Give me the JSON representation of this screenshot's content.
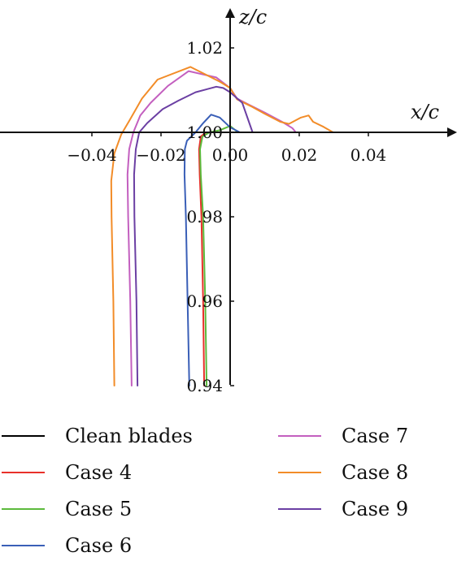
{
  "chart_data": {
    "type": "line",
    "xlabel": "x/c",
    "ylabel": "z/c",
    "xlim": [
      -0.052,
      0.05
    ],
    "ylim": [
      0.94,
      1.03
    ],
    "x_ticks": [
      "−0.04",
      "−0.02",
      "0.00",
      "0.02",
      "0.04"
    ],
    "x_tick_values": [
      -0.04,
      -0.02,
      0.0,
      0.02,
      0.04
    ],
    "y_ticks": [
      "1.02",
      "1.00",
      "0.98",
      "0.96",
      "0.94"
    ],
    "y_tick_values": [
      1.02,
      1.0,
      0.98,
      0.96,
      0.94
    ],
    "grid": false,
    "legend_position": "bottom",
    "series": [
      {
        "name": "Clean blades",
        "color": "#000000",
        "points": []
      },
      {
        "name": "Case 4",
        "color": "#e8302a",
        "points": [
          [
            -0.0075,
            0.94
          ],
          [
            -0.0078,
            0.96
          ],
          [
            -0.0083,
            0.98
          ],
          [
            -0.0088,
            0.99
          ],
          [
            -0.009,
            0.996
          ],
          [
            -0.0085,
            0.999
          ],
          [
            -0.007,
            1.0
          ]
        ]
      },
      {
        "name": "Case 5",
        "color": "#5cba3c",
        "points": [
          [
            -0.0068,
            0.94
          ],
          [
            -0.0072,
            0.96
          ],
          [
            -0.0078,
            0.98
          ],
          [
            -0.0085,
            0.99
          ],
          [
            -0.0087,
            0.996
          ],
          [
            -0.008,
            0.999
          ],
          [
            -0.006,
            1.0
          ],
          [
            -0.003,
            1.0005
          ],
          [
            0.0,
            1.0015
          ],
          [
            0.002,
            1.0002
          ]
        ]
      },
      {
        "name": "Case 6",
        "color": "#3a5fb7",
        "points": [
          [
            -0.0118,
            0.94
          ],
          [
            -0.0123,
            0.96
          ],
          [
            -0.0128,
            0.98
          ],
          [
            -0.0132,
            0.99
          ],
          [
            -0.0131,
            0.996
          ],
          [
            -0.0125,
            0.998
          ],
          [
            -0.01,
            1.0
          ],
          [
            -0.008,
            1.002
          ],
          [
            -0.0055,
            1.0042
          ],
          [
            -0.003,
            1.0035
          ],
          [
            0.0,
            1.0012
          ],
          [
            0.0028,
            1.0
          ]
        ]
      },
      {
        "name": "Case 7",
        "color": "#c35fbf",
        "points": [
          [
            -0.0285,
            0.94
          ],
          [
            -0.0289,
            0.96
          ],
          [
            -0.0295,
            0.98
          ],
          [
            -0.0297,
            0.99
          ],
          [
            -0.0292,
            0.996
          ],
          [
            -0.028,
            1.0
          ],
          [
            -0.026,
            1.004
          ],
          [
            -0.023,
            1.007
          ],
          [
            -0.018,
            1.011
          ],
          [
            -0.012,
            1.0145
          ],
          [
            -0.004,
            1.013
          ],
          [
            0.0,
            1.0105
          ],
          [
            0.002,
            1.008
          ],
          [
            0.006,
            1.0063
          ],
          [
            0.01,
            1.0047
          ],
          [
            0.015,
            1.0025
          ],
          [
            0.018,
            1.001
          ],
          [
            0.019,
            1.0
          ]
        ]
      },
      {
        "name": "Case 8",
        "color": "#f28c28",
        "points": [
          [
            -0.0335,
            0.94
          ],
          [
            -0.0338,
            0.96
          ],
          [
            -0.0343,
            0.98
          ],
          [
            -0.0344,
            0.9885
          ],
          [
            -0.0335,
            0.995
          ],
          [
            -0.0315,
            0.9995
          ],
          [
            -0.029,
            1.003
          ],
          [
            -0.0255,
            1.008
          ],
          [
            -0.021,
            1.0125
          ],
          [
            -0.0115,
            1.0155
          ],
          [
            -0.003,
            1.012
          ],
          [
            0.0,
            1.0105
          ],
          [
            0.002,
            1.0078
          ],
          [
            0.006,
            1.0062
          ],
          [
            0.01,
            1.0044
          ],
          [
            0.0145,
            1.0025
          ],
          [
            0.017,
            1.002
          ],
          [
            0.0205,
            1.0035
          ],
          [
            0.0227,
            1.004
          ],
          [
            0.024,
            1.0025
          ],
          [
            0.027,
            1.0013
          ],
          [
            0.0298,
            1.0
          ]
        ]
      },
      {
        "name": "Case 9",
        "color": "#6b3fa3",
        "points": [
          [
            -0.0268,
            0.94
          ],
          [
            -0.0271,
            0.96
          ],
          [
            -0.0277,
            0.98
          ],
          [
            -0.0278,
            0.99
          ],
          [
            -0.0273,
            0.996
          ],
          [
            -0.0263,
            1.0
          ],
          [
            -0.024,
            1.0022
          ],
          [
            -0.0195,
            1.0055
          ],
          [
            -0.015,
            1.0075
          ],
          [
            -0.01,
            1.0095
          ],
          [
            -0.004,
            1.0108
          ],
          [
            -0.002,
            1.0105
          ],
          [
            0.0,
            1.0095
          ],
          [
            0.0035,
            1.007
          ],
          [
            0.0065,
            1.0
          ]
        ]
      }
    ],
    "legend_columns": [
      [
        "Clean blades",
        "Case 4",
        "Case 5",
        "Case 6"
      ],
      [
        "Case 7",
        "Case 8",
        "Case 9"
      ]
    ]
  }
}
